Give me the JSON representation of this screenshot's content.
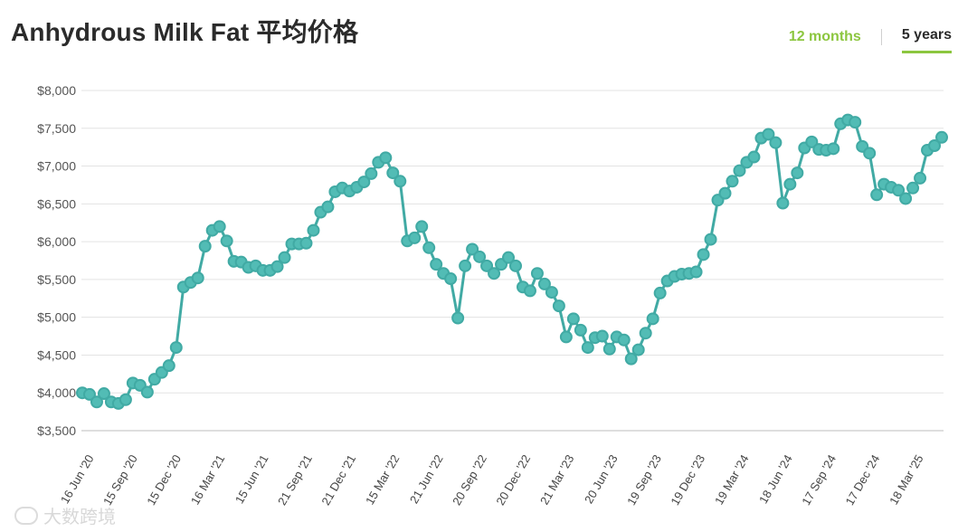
{
  "title": "Anhydrous Milk Fat 平均价格",
  "tabs": [
    {
      "label": "12 months"
    },
    {
      "label": "5 years"
    }
  ],
  "watermark": {
    "text": "大数跨境"
  },
  "colors": {
    "line": "#41aaa4",
    "marker_fill": "#52bcb5",
    "accent": "#8cc63f"
  },
  "chart_data": {
    "type": "line",
    "title": "Anhydrous Milk Fat 平均价格",
    "xlabel": "",
    "ylabel": "",
    "ylim": [
      3500,
      8000
    ],
    "yticks": [
      3500,
      4000,
      4500,
      5000,
      5500,
      6000,
      6500,
      7000,
      7500,
      8000
    ],
    "ytick_labels": [
      "$3,500",
      "$4,000",
      "$4,500",
      "$5,000",
      "$5,500",
      "$6,000",
      "$6,500",
      "$7,000",
      "$7,500",
      "$8,000"
    ],
    "xtick_labels": [
      "16 Jun '20",
      "15 Sep '20",
      "15 Dec '20",
      "16 Mar '21",
      "15 Jun '21",
      "21 Sep '21",
      "21 Dec '21",
      "15 Mar '22",
      "21 Jun '22",
      "20 Sep '22",
      "20 Dec '22",
      "21 Mar '23",
      "20 Jun '23",
      "19 Sep '23",
      "19 Dec '23",
      "19 Mar '24",
      "18 Jun '24",
      "17 Sep '24",
      "17 Dec '24",
      "18 Mar '25"
    ],
    "grid": true,
    "legend": "none",
    "series": [
      {
        "values": [
          4000,
          3980,
          3880,
          3990,
          3880,
          3860,
          3910,
          4130,
          4100,
          4010,
          4180,
          4270,
          4360,
          4600,
          5400,
          5460,
          5520,
          5940,
          6150,
          6200,
          6010,
          5740,
          5730,
          5660,
          5680,
          5620,
          5620,
          5670,
          5790,
          5970,
          5970,
          5980,
          6150,
          6390,
          6460,
          6660,
          6710,
          6670,
          6720,
          6790,
          6900,
          7050,
          7110,
          6910,
          6800,
          6010,
          6050,
          6200,
          5920,
          5700,
          5580,
          5510,
          4990,
          5680,
          5900,
          5800,
          5680,
          5580,
          5700,
          5790,
          5680,
          5400,
          5350,
          5580,
          5440,
          5330,
          5150,
          4740,
          4980,
          4830,
          4600,
          4730,
          4750,
          4580,
          4740,
          4700,
          4450,
          4570,
          4790,
          4980,
          5320,
          5480,
          5540,
          5570,
          5580,
          5600,
          5830,
          6030,
          6550,
          6640,
          6800,
          6940,
          7050,
          7120,
          7370,
          7420,
          7310,
          6510,
          6760,
          6910,
          7240,
          7320,
          7220,
          7210,
          7230,
          7560,
          7610,
          7580,
          7260,
          7170,
          6620,
          6760,
          6720,
          6680,
          6570,
          6710,
          6840,
          7210,
          7270,
          7380
        ]
      }
    ]
  }
}
